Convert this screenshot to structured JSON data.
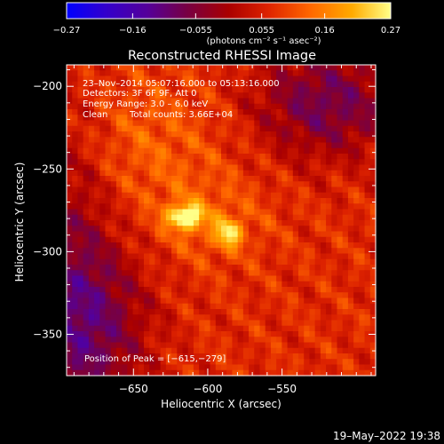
{
  "chart_data": {
    "type": "heatmap",
    "title": "Reconstructed RHESSI Image",
    "xlabel": "Heliocentric X (arcsec)",
    "ylabel": "Heliocentric Y (arcsec)",
    "xlim": [
      -695,
      -487
    ],
    "ylim": [
      -375,
      -187
    ],
    "xticks": [
      -650,
      -600,
      -550
    ],
    "xtick_labels": [
      "−650",
      "−600",
      "−550"
    ],
    "yticks": [
      -200,
      -250,
      -300,
      -350
    ],
    "ytick_labels": [
      "−200",
      "−250",
      "−300",
      "−350"
    ],
    "colorbar": {
      "min": -0.27,
      "max": 0.27,
      "ticks": [
        -0.27,
        -0.16,
        -0.055,
        0.055,
        0.16,
        0.27
      ],
      "tick_labels": [
        "−0.27",
        "−0.16",
        "−0.055",
        "0.055",
        "0.16",
        "0.27"
      ],
      "units": "(photons cm⁻² s⁻¹ asec⁻²)"
    },
    "annotations": {
      "time": "23–Nov–2014 05:07:16.000 to 05:13:16.000",
      "detectors": "Detectors: 3F 6F 9F, Att 0",
      "energy": "Energy Range: 3.0 – 6.0 keV",
      "method": "Clean",
      "counts": "Total counts: 3.66E+04",
      "peak": "Position of Peak = [−615,−279]"
    },
    "sources": [
      {
        "x": -615,
        "y": -279,
        "peak": 0.27
      },
      {
        "x": -586,
        "y": -289,
        "peak": 0.2
      }
    ],
    "timestamp": "19–May–2022 19:38"
  }
}
